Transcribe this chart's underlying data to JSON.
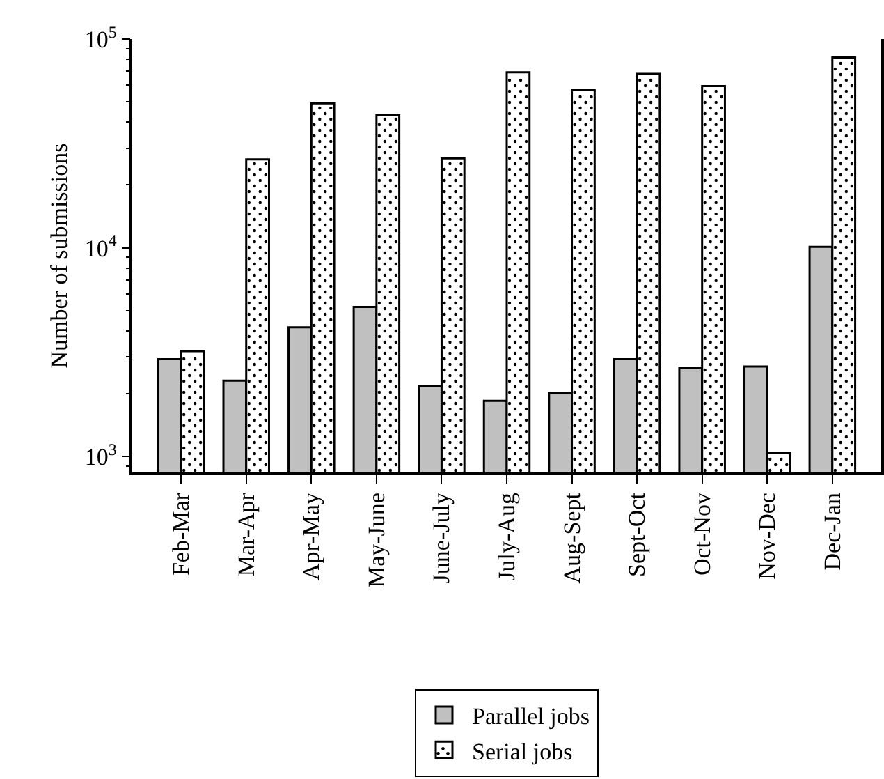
{
  "chart_data": {
    "type": "bar",
    "ylabel": "Number of submissions",
    "categories": [
      "Feb-Mar",
      "Mar-Apr",
      "Apr-May",
      "May-June",
      "June-July",
      "July-Aug",
      "Aug-Sept",
      "Sept-Oct",
      "Oct-Nov",
      "Nov-Dec",
      "Dec-Jan"
    ],
    "series": [
      {
        "name": "Parallel jobs",
        "color": "#c0c0c0",
        "values": [
          2930,
          2310,
          4160,
          5210,
          2180,
          1850,
          2010,
          2930,
          2670,
          2700,
          10100
        ]
      },
      {
        "name": "Serial jobs",
        "color": "#ffffff",
        "values": [
          3200,
          26500,
          49200,
          43200,
          26800,
          69300,
          56900,
          68100,
          59500,
          1040,
          81600
        ]
      }
    ],
    "log": true,
    "ylim": [
      840,
      100000
    ],
    "yticks": [
      {
        "value": 1000,
        "label": "10$^{3}$"
      },
      {
        "value": 10000,
        "label": "10$^{4}$"
      },
      {
        "value": 100000,
        "label": "10$^{5}$"
      }
    ],
    "grid": false,
    "legend": "bottom"
  }
}
